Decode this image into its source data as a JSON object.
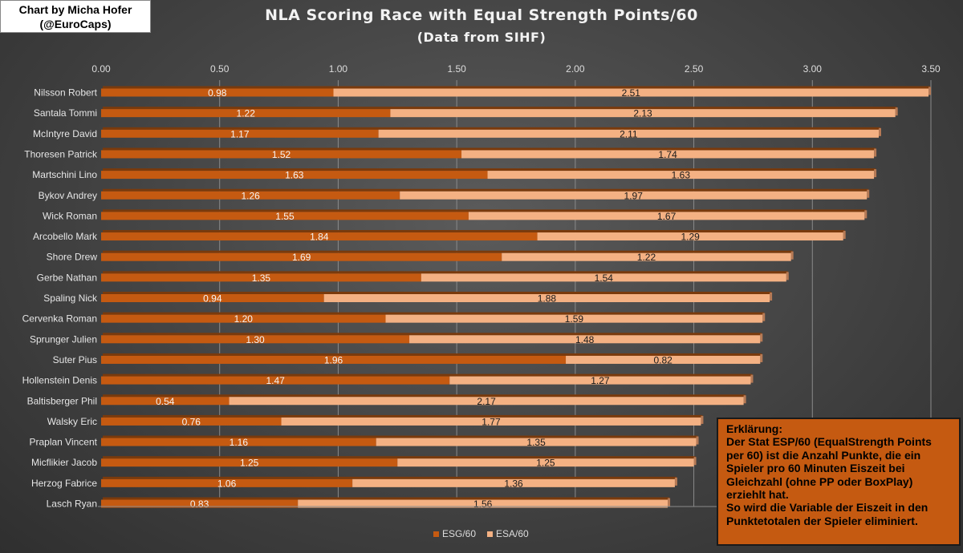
{
  "credit": {
    "line1": "Chart by Micha Hofer",
    "line2": "(@EuroCaps)"
  },
  "chart_data": {
    "type": "bar",
    "orientation": "horizontal",
    "stacked": true,
    "title": "NLA Scoring Race with Equal Strength Points/60",
    "subtitle": "(Data from SIHF)",
    "xlim": [
      0,
      3.5
    ],
    "xticks": [
      "0.00",
      "0.50",
      "1.00",
      "1.50",
      "2.00",
      "2.50",
      "3.00",
      "3.50"
    ],
    "grid": "vertical",
    "legend_position": "bottom",
    "categories": [
      "Nilsson Robert",
      "Santala Tommi",
      "McIntyre David",
      "Thoresen Patrick",
      "Martschini Lino",
      "Bykov Andrey",
      "Wick Roman",
      "Arcobello Mark",
      "Shore Drew",
      "Gerbe Nathan",
      "Spaling Nick",
      "Cervenka Roman",
      "Sprunger Julien",
      "Suter Pius",
      "Hollenstein Denis",
      "Baltisberger Phil",
      "Walsky Eric",
      "Praplan Vincent",
      "Micflikier Jacob",
      "Herzog Fabrice",
      "Lasch Ryan"
    ],
    "series": [
      {
        "name": "ESG/60",
        "color": "#c55a11",
        "values": [
          0.98,
          1.22,
          1.17,
          1.52,
          1.63,
          1.26,
          1.55,
          1.84,
          1.69,
          1.35,
          0.94,
          1.2,
          1.3,
          1.96,
          1.47,
          0.54,
          0.76,
          1.16,
          1.25,
          1.06,
          0.83
        ]
      },
      {
        "name": "ESA/60",
        "color": "#f4b183",
        "values": [
          2.51,
          2.13,
          2.11,
          1.74,
          1.63,
          1.97,
          1.67,
          1.29,
          1.22,
          1.54,
          1.88,
          1.59,
          1.48,
          0.82,
          1.27,
          2.17,
          1.77,
          1.35,
          1.25,
          1.36,
          1.56
        ]
      }
    ]
  },
  "note": {
    "heading": "Erklärung:",
    "lines": [
      "Der Stat ESP/60 (EqualStrength Points",
      "per 60) ist die Anzahl Punkte, die ein",
      "Spieler pro 60 Minuten Eiszeit bei",
      "Gleichzahl (ohne PP oder BoxPlay)",
      "erziehlt hat.",
      "So wird die Variable der Eiszeit in den",
      "Punktetotalen der Spieler eliminiert."
    ]
  }
}
